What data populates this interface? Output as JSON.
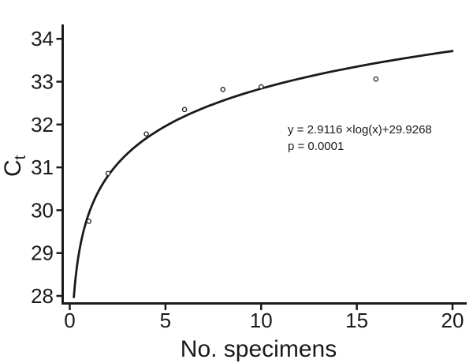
{
  "figure": {
    "background": "#ffffff",
    "ink_color": "#1a1a1a"
  },
  "chart_data": {
    "type": "scatter",
    "title": "",
    "xlabel": "No. specimens",
    "ylabel": {
      "base": "C",
      "subscript": "t"
    },
    "x_ticks": [
      0,
      5,
      10,
      15,
      20
    ],
    "y_ticks": [
      28,
      29,
      30,
      31,
      32,
      33,
      34
    ],
    "xlim": [
      0,
      20.8
    ],
    "ylim": [
      27.8,
      34.35
    ],
    "grid": false,
    "legend": false,
    "marker": "open-circle",
    "points": [
      {
        "x": 1,
        "y": 29.74
      },
      {
        "x": 2,
        "y": 30.86
      },
      {
        "x": 4,
        "y": 31.78
      },
      {
        "x": 6,
        "y": 32.35
      },
      {
        "x": 8,
        "y": 32.82
      },
      {
        "x": 10,
        "y": 32.88
      },
      {
        "x": 16,
        "y": 33.06
      }
    ],
    "fit_curve": {
      "model": "y = slope * log10(x) + intercept",
      "slope": 2.9116,
      "intercept": 29.9268,
      "x_start": 0.213,
      "x_end": 20
    },
    "annotation": {
      "equation": "y = 2.9116 ×log(x)+29.9268",
      "p_value": "p = 0.0001"
    }
  }
}
